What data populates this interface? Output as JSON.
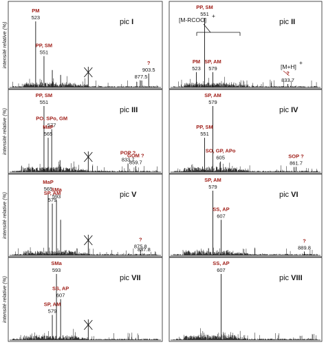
{
  "chart_data": {
    "type": "mass-spectra-grid",
    "ylabel": "intensité relative (%)",
    "colors": {
      "label": "#a0201a",
      "line": "#111111"
    },
    "panels": [
      {
        "pic": "pic",
        "pic_num": "I",
        "peaks": [
          {
            "mz": 523,
            "mz_label": "523",
            "intensity": 95,
            "label": "PM"
          },
          {
            "mz": 551,
            "mz_label": "551",
            "intensity": 45,
            "label": "PP, SM"
          },
          {
            "mz": 579,
            "intensity": 25
          },
          {
            "mz": 607,
            "intensity": 18
          },
          {
            "mz": 877.5,
            "mz_label": "877.5",
            "intensity": 10
          },
          {
            "mz": 903.5,
            "mz_label": "903.5",
            "intensity": 20,
            "label": "?"
          }
        ],
        "crossed": true
      },
      {
        "pic": "pic",
        "pic_num": "II",
        "peaks": [
          {
            "mz": 523,
            "mz_label": "523",
            "intensity": 22,
            "label": "PM"
          },
          {
            "mz": 551,
            "mz_label": "551",
            "intensity": 100,
            "label": "PP, SM"
          },
          {
            "mz": 579,
            "mz_label": "579",
            "intensity": 22,
            "label": "SP, AM"
          },
          {
            "mz": 833.7,
            "mz_label": "833.7",
            "intensity": 5,
            "label": "?"
          }
        ],
        "annotations": [
          "[M-RCOO]",
          "+",
          "[M+H]",
          "+"
        ]
      },
      {
        "pic": "pic",
        "pic_num": "III",
        "peaks": [
          {
            "mz": 551,
            "mz_label": "551",
            "intensity": 100,
            "label": "PP, SM"
          },
          {
            "mz": 565,
            "mz_label": "565",
            "intensity": 52,
            "label": "MaP"
          },
          {
            "mz": 577,
            "mz_label": "577",
            "intensity": 65,
            "label": "PO, SPo, GM"
          },
          {
            "mz": 605,
            "intensity": 18
          },
          {
            "mz": 833.7,
            "mz_label": "833.7",
            "intensity": 13,
            "label": "POP ?"
          },
          {
            "mz": 859.7,
            "mz_label": "859.7",
            "intensity": 9,
            "label": "GOM ?"
          }
        ],
        "crossed": true
      },
      {
        "pic": "pic",
        "pic_num": "IV",
        "peaks": [
          {
            "mz": 551,
            "mz_label": "551",
            "intensity": 52,
            "label": "PP, SM"
          },
          {
            "mz": 579,
            "mz_label": "579",
            "intensity": 100,
            "label": "SP, AM"
          },
          {
            "mz": 605,
            "mz_label": "605",
            "intensity": 16,
            "label": "SO, GP, APo"
          },
          {
            "mz": 861.7,
            "mz_label": "861.7",
            "intensity": 8,
            "label": "SOP ?"
          }
        ]
      },
      {
        "pic": "pic",
        "pic_num": "V",
        "peaks": [
          {
            "mz": 565,
            "mz_label": "565",
            "intensity": 97,
            "label": "MaP"
          },
          {
            "mz": 579,
            "mz_label": "579",
            "intensity": 80,
            "label": "SP, AM"
          },
          {
            "mz": 593,
            "mz_label": "593",
            "intensity": 85,
            "label": "SMa"
          },
          {
            "mz": 607,
            "intensity": 55
          },
          {
            "mz": 875.8,
            "mz_label": "875.8",
            "intensity": 8,
            "label": "?"
          },
          {
            "mz": 887.8,
            "mz_label": "887.8",
            "intensity": 3
          }
        ],
        "crossed": true
      },
      {
        "pic": "pic",
        "pic_num": "VI",
        "peaks": [
          {
            "mz": 579,
            "mz_label": "579",
            "intensity": 100,
            "label": "SP, AM"
          },
          {
            "mz": 607,
            "mz_label": "607",
            "intensity": 55,
            "label": "SS, AP"
          },
          {
            "mz": 889.8,
            "mz_label": "889.8",
            "intensity": 6,
            "label": "?"
          }
        ]
      },
      {
        "pic": "pic",
        "pic_num": "VII",
        "peaks": [
          {
            "mz": 579,
            "mz_label": "579",
            "intensity": 38,
            "label": "SP, AM"
          },
          {
            "mz": 593,
            "mz_label": "593",
            "intensity": 100,
            "label": "SMa"
          },
          {
            "mz": 607,
            "mz_label": "607",
            "intensity": 62,
            "label": "SS, AP"
          }
        ],
        "crossed": true
      },
      {
        "pic": "pic",
        "pic_num": "VIII",
        "peaks": [
          {
            "mz": 607,
            "mz_label": "607",
            "intensity": 100,
            "label": "SS, AP"
          }
        ]
      }
    ]
  }
}
